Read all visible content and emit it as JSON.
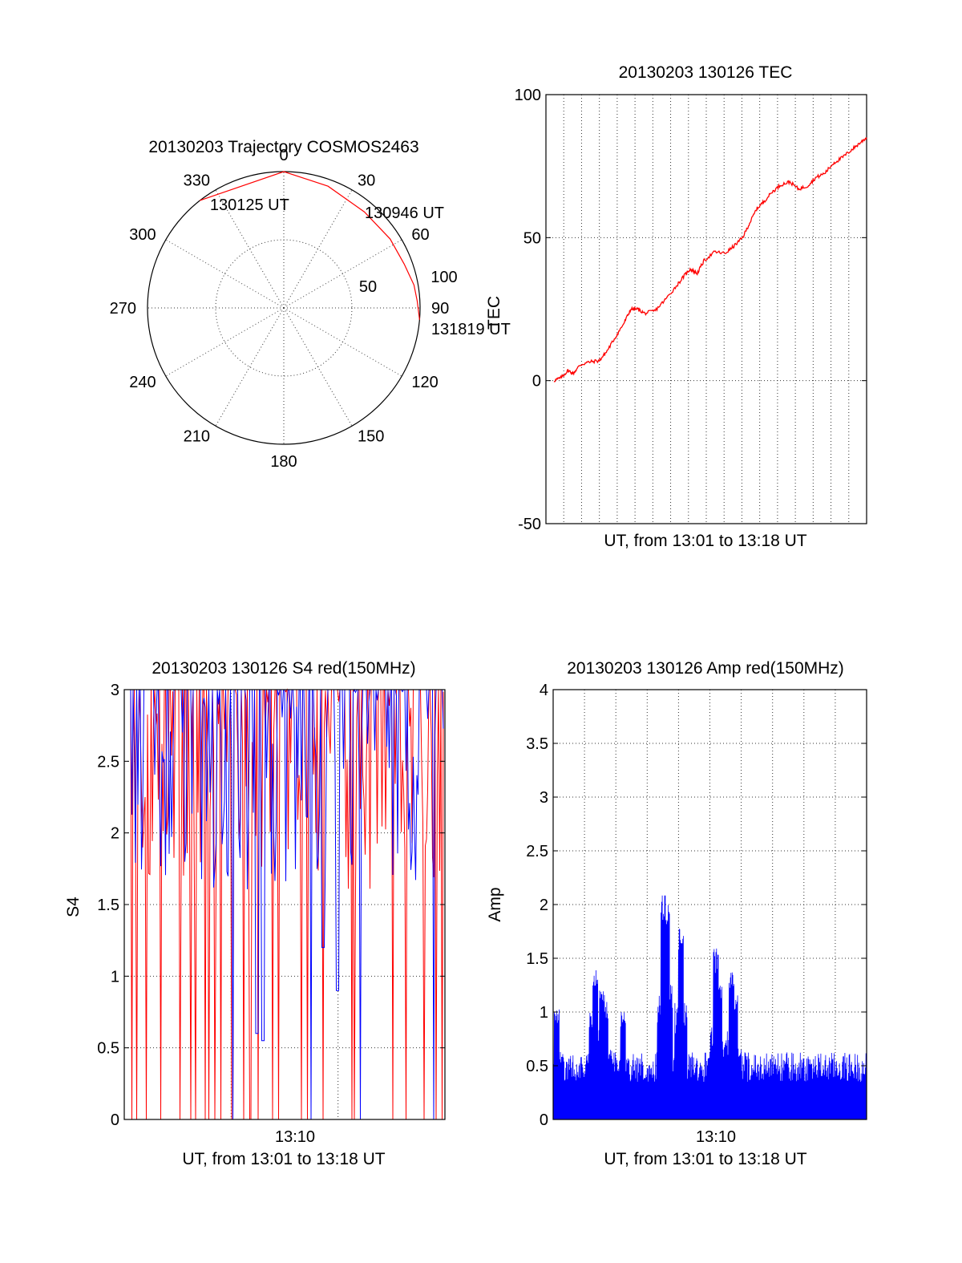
{
  "chart_data": [
    {
      "type": "polar",
      "title": "20130203 Trajectory COSMOS2463",
      "azimuth_labels": [
        "0",
        "30",
        "60",
        "90",
        "120",
        "150",
        "180",
        "210",
        "240",
        "270",
        "300",
        "330"
      ],
      "elevation_ring_labels": [
        "50",
        "100"
      ],
      "trajectory": {
        "points": [
          {
            "az": -38,
            "r": 100
          },
          {
            "az": 0,
            "r": 100
          },
          {
            "az": 20,
            "r": 95
          },
          {
            "az": 40,
            "r": 92
          },
          {
            "az": 57,
            "r": 93
          },
          {
            "az": 70,
            "r": 94
          },
          {
            "az": 80,
            "r": 97
          },
          {
            "az": 87,
            "r": 98
          },
          {
            "az": 95,
            "r": 100
          }
        ],
        "labels": [
          {
            "text": "130125 UT",
            "az": -38,
            "r": 100
          },
          {
            "text": "130946 UT",
            "az": 40,
            "r": 92
          },
          {
            "text": "131819 UT",
            "az": 95,
            "r": 100
          }
        ],
        "color": "#ff0000"
      }
    },
    {
      "type": "line",
      "title": "20130203 130126 TEC",
      "xlabel": "UT, from 13:01 to 13:18 UT",
      "ylabel": "TEC",
      "ylim": [
        -50,
        100
      ],
      "yticks": [
        "100",
        "50",
        "0",
        "-50"
      ],
      "xlim_minutes": [
        0,
        17.9
      ],
      "vertical_grid_lines": 17,
      "series": [
        {
          "color": "#ff0000",
          "points": [
            [
              0.0,
              0.0
            ],
            [
              0.4,
              1.0
            ],
            [
              0.8,
              3.5
            ],
            [
              1.1,
              2.5
            ],
            [
              1.5,
              5.5
            ],
            [
              2.0,
              6.5
            ],
            [
              2.6,
              7.0
            ],
            [
              3.0,
              10.0
            ],
            [
              3.5,
              15.0
            ],
            [
              4.0,
              20.0
            ],
            [
              4.4,
              25.0
            ],
            [
              4.8,
              25.0
            ],
            [
              5.2,
              23.5
            ],
            [
              5.8,
              24.5
            ],
            [
              6.4,
              28.5
            ],
            [
              7.0,
              33.0
            ],
            [
              7.5,
              37.0
            ],
            [
              7.8,
              39.0
            ],
            [
              8.2,
              37.5
            ],
            [
              8.6,
              42.0
            ],
            [
              9.2,
              45.0
            ],
            [
              9.8,
              44.5
            ],
            [
              10.3,
              47.0
            ],
            [
              10.8,
              50.0
            ],
            [
              11.2,
              55.0
            ],
            [
              11.6,
              60.0
            ],
            [
              12.0,
              62.5
            ],
            [
              12.5,
              66.0
            ],
            [
              13.0,
              68.5
            ],
            [
              13.5,
              69.5
            ],
            [
              14.0,
              67.0
            ],
            [
              14.5,
              68.0
            ],
            [
              15.0,
              71.0
            ],
            [
              15.5,
              72.5
            ],
            [
              16.0,
              76.0
            ],
            [
              16.5,
              78.0
            ],
            [
              17.0,
              80.5
            ],
            [
              17.5,
              83.0
            ],
            [
              17.9,
              85.0
            ]
          ]
        }
      ]
    },
    {
      "type": "line",
      "title": "20130203 130126 S4 red(150MHz)",
      "xlabel": "UT, from 13:01 to 13:18 UT",
      "ylabel": "S4",
      "xticks": [
        "13:10"
      ],
      "yticks": [
        "3",
        "2.5",
        "2",
        "1.5",
        "1",
        "0.5",
        "0"
      ],
      "ylim": [
        0,
        3
      ],
      "xlim_minutes": [
        0,
        17.9
      ],
      "series": [
        {
          "color": "#ff0000",
          "description_values": {
            "clip_top": 3,
            "typical_low": 1.8,
            "dropouts_to": 0
          }
        },
        {
          "color": "#0000ff",
          "description_values": {
            "clip_top": 3,
            "typical_low": 2.0,
            "dips": [
              1.2,
              0.55,
              0.9
            ]
          }
        }
      ]
    },
    {
      "type": "bar",
      "title": "20130203 130126 Amp red(150MHz)",
      "xlabel": "UT, from 13:01 to 13:18 UT",
      "ylabel": "Amp",
      "xticks": [
        "13:10"
      ],
      "yticks": [
        "4",
        "3.5",
        "3",
        "2.5",
        "2",
        "1.5",
        "1",
        "0.5",
        "0"
      ],
      "ylim": [
        0,
        4
      ],
      "xlim_minutes": [
        0,
        17.9
      ],
      "series": [
        {
          "color": "#0000ff",
          "baseline": 0.5,
          "peaks": [
            [
              0.2,
              1.05
            ],
            [
              2.2,
              1.0
            ],
            [
              2.4,
              1.4
            ],
            [
              2.8,
              1.2
            ],
            [
              3.0,
              1.1
            ],
            [
              4.0,
              1.0
            ],
            [
              6.3,
              2.12
            ],
            [
              6.5,
              2.1
            ],
            [
              7.3,
              1.85
            ],
            [
              9.3,
              1.6
            ],
            [
              9.5,
              1.3
            ],
            [
              10.2,
              1.4
            ],
            [
              10.4,
              1.2
            ]
          ]
        }
      ]
    }
  ]
}
